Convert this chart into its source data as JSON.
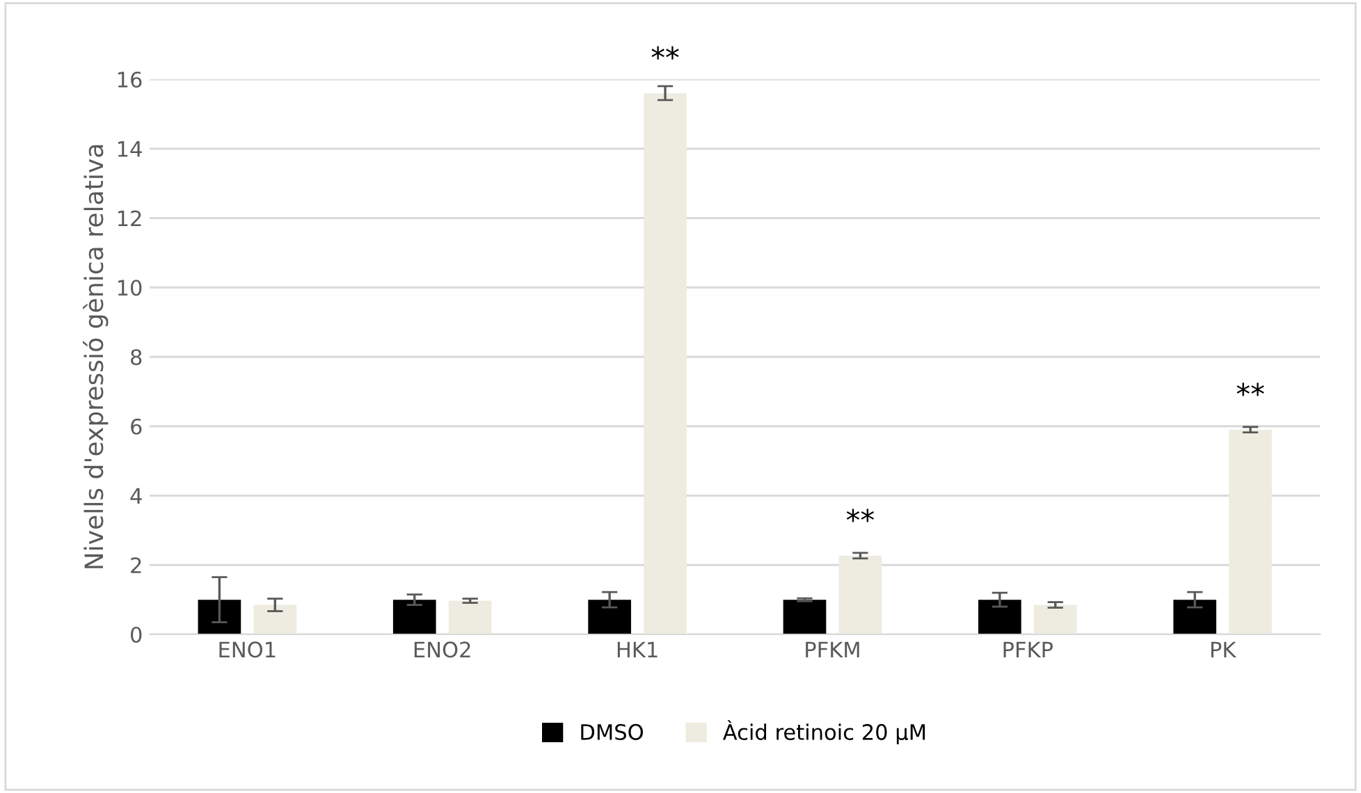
{
  "chart_data": {
    "type": "bar",
    "ylabel": "Nivells d'expressió gènica relativa",
    "categories": [
      "ENO1",
      "ENO2",
      "HK1",
      "PFKM",
      "PFKP",
      "PK"
    ],
    "series": [
      {
        "name": "DMSO",
        "color": "#000000",
        "values": [
          1,
          1,
          1,
          1,
          1,
          1
        ],
        "errors": [
          0.65,
          0.15,
          0.22,
          0.04,
          0.2,
          0.22
        ]
      },
      {
        "name": "Àcid retinoic 20 µM",
        "color": "#eeece1",
        "values": [
          0.85,
          0.97,
          15.6,
          2.27,
          0.85,
          5.9
        ],
        "errors": [
          0.18,
          0.06,
          0.2,
          0.08,
          0.08,
          0.08
        ]
      }
    ],
    "ylim": [
      0,
      16
    ],
    "yticks": [
      0,
      2,
      4,
      6,
      8,
      10,
      12,
      14,
      16
    ],
    "grid": "y",
    "legend": "bottom",
    "annotations": [
      {
        "text": "**",
        "x": "HK1",
        "y": 15.6
      },
      {
        "text": "**",
        "x": "PFKM",
        "y": 2.27
      },
      {
        "text": "**",
        "x": "PK",
        "y": 5.9
      }
    ]
  }
}
